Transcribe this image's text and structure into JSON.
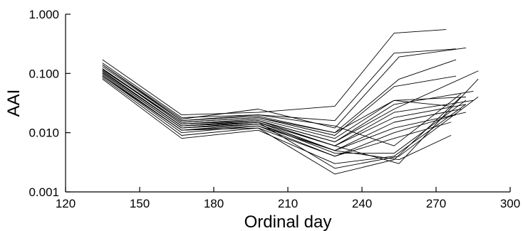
{
  "chart_data": {
    "type": "line",
    "title": "",
    "xlabel": "Ordinal day",
    "ylabel": "AAI",
    "xlim": [
      120,
      300
    ],
    "ylim": [
      0.001,
      1.0
    ],
    "yscale": "log",
    "xticks": [
      120,
      150,
      180,
      210,
      240,
      270,
      300
    ],
    "xtick_labels": [
      "120",
      "150",
      "180",
      "210",
      "240",
      "270",
      "300"
    ],
    "yticks": [
      0.001,
      0.01,
      0.1,
      1.0
    ],
    "ytick_labels": [
      "0.001",
      "0.010",
      "0.100",
      "1.000"
    ],
    "grid": false,
    "legend": "none",
    "series": [
      {
        "x": [
          135,
          167,
          198,
          229,
          253,
          274
        ],
        "y": [
          0.17,
          0.02,
          0.022,
          0.028,
          0.48,
          0.55
        ]
      },
      {
        "x": [
          135,
          167,
          198,
          229,
          253,
          278
        ],
        "y": [
          0.15,
          0.018,
          0.02,
          0.016,
          0.22,
          0.26
        ]
      },
      {
        "x": [
          135,
          167,
          198,
          229,
          255,
          282
        ],
        "y": [
          0.14,
          0.017,
          0.025,
          0.012,
          0.19,
          0.27
        ]
      },
      {
        "x": [
          135,
          167,
          198,
          229,
          255,
          278
        ],
        "y": [
          0.13,
          0.016,
          0.019,
          0.01,
          0.08,
          0.17
        ]
      },
      {
        "x": [
          135,
          167,
          198,
          229,
          253,
          278
        ],
        "y": [
          0.12,
          0.015,
          0.018,
          0.009,
          0.06,
          0.09
        ]
      },
      {
        "x": [
          135,
          167,
          198,
          229,
          253,
          282
        ],
        "y": [
          0.12,
          0.014,
          0.017,
          0.008,
          0.035,
          0.04
        ]
      },
      {
        "x": [
          135,
          167,
          198,
          229,
          253,
          285
        ],
        "y": [
          0.11,
          0.013,
          0.016,
          0.007,
          0.03,
          0.05
        ]
      },
      {
        "x": [
          135,
          167,
          198,
          229,
          253,
          287
        ],
        "y": [
          0.11,
          0.013,
          0.016,
          0.007,
          0.025,
          0.11
        ]
      },
      {
        "x": [
          135,
          167,
          198,
          229,
          253,
          285
        ],
        "y": [
          0.1,
          0.012,
          0.015,
          0.006,
          0.022,
          0.035
        ]
      },
      {
        "x": [
          135,
          167,
          198,
          229,
          253,
          282
        ],
        "y": [
          0.1,
          0.012,
          0.015,
          0.006,
          0.018,
          0.03
        ]
      },
      {
        "x": [
          135,
          167,
          198,
          229,
          253,
          280
        ],
        "y": [
          0.095,
          0.011,
          0.014,
          0.005,
          0.015,
          0.025
        ]
      },
      {
        "x": [
          135,
          167,
          198,
          229,
          253,
          282
        ],
        "y": [
          0.09,
          0.011,
          0.013,
          0.005,
          0.012,
          0.022
        ]
      },
      {
        "x": [
          135,
          167,
          198,
          229,
          253,
          278
        ],
        "y": [
          0.09,
          0.01,
          0.013,
          0.004,
          0.01,
          0.02
        ]
      },
      {
        "x": [
          135,
          167,
          198,
          229,
          253,
          276
        ],
        "y": [
          0.085,
          0.009,
          0.012,
          0.004,
          0.008,
          0.015
        ]
      },
      {
        "x": [
          135,
          167,
          198,
          229,
          253,
          282
        ],
        "y": [
          0.08,
          0.008,
          0.011,
          0.003,
          0.004,
          0.03
        ]
      },
      {
        "x": [
          135,
          167,
          198,
          229,
          255,
          287
        ],
        "y": [
          0.12,
          0.014,
          0.016,
          0.006,
          0.003,
          0.08
        ]
      },
      {
        "x": [
          135,
          167,
          198,
          229,
          255,
          276
        ],
        "y": [
          0.11,
          0.013,
          0.015,
          0.005,
          0.0035,
          0.009
        ]
      },
      {
        "x": [
          135,
          167,
          198,
          229,
          253,
          282
        ],
        "y": [
          0.1,
          0.012,
          0.014,
          0.0045,
          0.0045,
          0.035
        ]
      },
      {
        "x": [
          135,
          167,
          198,
          229,
          255,
          287
        ],
        "y": [
          0.105,
          0.013,
          0.015,
          0.0025,
          0.004,
          0.04
        ]
      },
      {
        "x": [
          135,
          167,
          198,
          229,
          253,
          280
        ],
        "y": [
          0.09,
          0.011,
          0.012,
          0.002,
          0.0035,
          0.04
        ]
      },
      {
        "x": [
          135,
          167,
          198,
          229,
          253,
          276
        ],
        "y": [
          0.115,
          0.015,
          0.018,
          0.01,
          0.035,
          0.028
        ]
      },
      {
        "x": [
          135,
          167,
          198,
          229,
          253,
          280
        ],
        "y": [
          0.14,
          0.016,
          0.02,
          0.013,
          0.006,
          0.045
        ]
      }
    ]
  }
}
